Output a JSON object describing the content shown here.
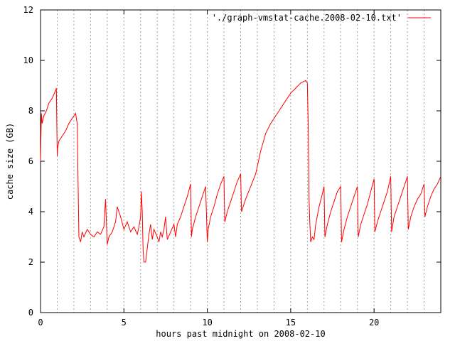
{
  "chart_data": {
    "type": "line",
    "title": "",
    "xlabel": "hours past midnight on 2008-02-10",
    "ylabel": "cache size (GB)",
    "xlim": [
      0,
      24
    ],
    "ylim": [
      0,
      12
    ],
    "x_ticks": [
      0,
      5,
      10,
      15,
      20
    ],
    "y_ticks": [
      0,
      2,
      4,
      6,
      8,
      10,
      12
    ],
    "x_tick_labels": [
      "0",
      "5",
      "10",
      "15",
      "20"
    ],
    "y_tick_labels": [
      "0",
      "2",
      "4",
      "6",
      "8",
      "10",
      "12"
    ],
    "vertical_grid_x": [
      1,
      2,
      3,
      4,
      5,
      6,
      7,
      8,
      9,
      10,
      11,
      12,
      13,
      14,
      15,
      16,
      17,
      18,
      19,
      20,
      21,
      22,
      23
    ],
    "horizontal_grid": false,
    "legend_position": "top-right",
    "series": [
      {
        "name": "'./graph-vmstat-cache.2008-02-10.txt'",
        "color": "#ff0000",
        "x": [
          0,
          0.05,
          0.1,
          0.2,
          0.35,
          0.5,
          0.7,
          0.9,
          0.95,
          1.0,
          1.02,
          1.1,
          1.3,
          1.5,
          1.7,
          1.9,
          2.1,
          2.2,
          2.25,
          2.3,
          2.4,
          2.5,
          2.6,
          2.8,
          3.0,
          3.2,
          3.4,
          3.6,
          3.8,
          3.9,
          4.0,
          4.1,
          4.3,
          4.5,
          4.6,
          4.8,
          5.0,
          5.2,
          5.4,
          5.6,
          5.8,
          5.9,
          6.0,
          6.05,
          6.1,
          6.15,
          6.2,
          6.3,
          6.5,
          6.6,
          6.7,
          6.8,
          7.0,
          7.1,
          7.2,
          7.3,
          7.4,
          7.5,
          7.6,
          7.8,
          8.0,
          8.1,
          8.2,
          8.4,
          8.6,
          8.8,
          9.0,
          9.05,
          9.1,
          9.3,
          9.5,
          9.7,
          9.9,
          10.0,
          10.05,
          10.2,
          10.4,
          10.6,
          10.8,
          11.0,
          11.05,
          11.2,
          11.4,
          11.6,
          11.8,
          12.0,
          12.05,
          12.3,
          12.6,
          12.9,
          13.0,
          13.2,
          13.5,
          13.8,
          14.1,
          14.4,
          14.7,
          15.0,
          15.3,
          15.6,
          15.9,
          16.0,
          16.05,
          16.1,
          16.15,
          16.2,
          16.3,
          16.4,
          16.5,
          16.7,
          16.9,
          17.0,
          17.05,
          17.2,
          17.4,
          17.6,
          17.8,
          18.0,
          18.05,
          18.2,
          18.4,
          18.6,
          18.8,
          19.0,
          19.05,
          19.2,
          19.4,
          19.6,
          19.8,
          20.0,
          20.05,
          20.2,
          20.4,
          20.6,
          20.8,
          21.0,
          21.05,
          21.2,
          21.4,
          21.6,
          21.8,
          22.0,
          22.05,
          22.2,
          22.4,
          22.6,
          22.8,
          23.0,
          23.05,
          23.2,
          23.4,
          23.6,
          23.8,
          24.0
        ],
        "values": [
          6.0,
          7.9,
          7.5,
          7.8,
          8.0,
          8.3,
          8.5,
          8.8,
          8.9,
          6.2,
          6.5,
          6.8,
          7.0,
          7.2,
          7.5,
          7.7,
          7.9,
          7.5,
          5.2,
          3.0,
          2.8,
          3.2,
          3.0,
          3.3,
          3.1,
          3.0,
          3.2,
          3.1,
          3.4,
          4.5,
          2.7,
          3.0,
          3.2,
          3.6,
          4.2,
          3.8,
          3.3,
          3.6,
          3.2,
          3.4,
          3.1,
          3.4,
          3.8,
          4.8,
          4.0,
          2.5,
          2.0,
          2.0,
          3.1,
          3.5,
          2.9,
          3.3,
          3.0,
          2.8,
          3.2,
          3.0,
          3.3,
          3.8,
          2.9,
          3.2,
          3.5,
          3.0,
          3.5,
          3.8,
          4.2,
          4.6,
          5.1,
          3.0,
          3.3,
          3.8,
          4.2,
          4.6,
          5.0,
          2.8,
          3.3,
          3.8,
          4.2,
          4.7,
          5.1,
          5.4,
          3.6,
          4.0,
          4.4,
          4.8,
          5.2,
          5.5,
          4.0,
          4.5,
          5.0,
          5.5,
          5.8,
          6.4,
          7.1,
          7.5,
          7.8,
          8.1,
          8.4,
          8.7,
          8.9,
          9.1,
          9.2,
          9.1,
          7.5,
          4.5,
          3.5,
          2.8,
          3.0,
          2.9,
          3.5,
          4.2,
          4.7,
          5.0,
          3.0,
          3.5,
          4.0,
          4.4,
          4.8,
          5.0,
          2.8,
          3.3,
          3.8,
          4.2,
          4.6,
          5.0,
          3.0,
          3.5,
          3.9,
          4.3,
          4.8,
          5.3,
          3.2,
          3.6,
          4.0,
          4.4,
          4.8,
          5.4,
          3.2,
          3.8,
          4.2,
          4.6,
          5.0,
          5.4,
          3.3,
          3.8,
          4.2,
          4.5,
          4.7,
          5.1,
          3.8,
          4.2,
          4.6,
          4.9,
          5.1,
          5.4
        ]
      }
    ]
  }
}
